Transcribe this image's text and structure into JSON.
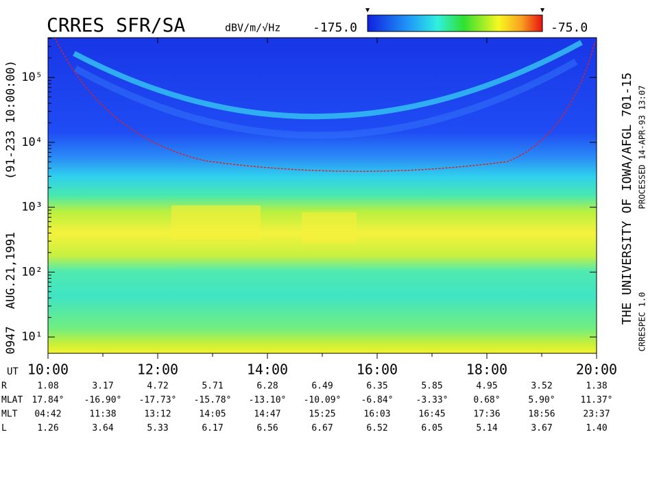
{
  "chart_data": {
    "type": "spectrogram",
    "title": "CRRES SFR/SA",
    "color_label": "dBV/m/√Hz",
    "clim": [
      -175,
      -75
    ],
    "cticks": [
      {
        "value": -175,
        "label": "-175.0"
      },
      {
        "value": -75,
        "label": "-75.0"
      }
    ],
    "ylog": true,
    "ylim": [
      5.6,
      410000
    ],
    "yticks": [
      {
        "value": 10,
        "label": "10¹"
      },
      {
        "value": 100,
        "label": "10²"
      },
      {
        "value": 1000,
        "label": "10³"
      },
      {
        "value": 10000,
        "label": "10⁴"
      },
      {
        "value": 100000,
        "label": "10⁵"
      }
    ],
    "xlim": [
      10,
      20
    ],
    "xticks": [
      {
        "value": 10,
        "label": "10:00"
      },
      {
        "value": 12,
        "label": "12:00"
      },
      {
        "value": 14,
        "label": "14:00"
      },
      {
        "value": 16,
        "label": "16:00"
      },
      {
        "value": 18,
        "label": "18:00"
      },
      {
        "value": 20,
        "label": "20:00"
      }
    ],
    "xminorticks": [
      11,
      13,
      15,
      17,
      19
    ],
    "x_axis_label": "UT",
    "left_labels": [
      "0947",
      "AUG.21,1991",
      "(91-233 10:00:00)"
    ],
    "right_label": "THE UNIVERSITY OF IOWA/AFGL 701-15",
    "right_small_labels": [
      "CRRESPEC 1.0",
      "PROCESSED 14-APR-93  13:07"
    ],
    "ephemeris": [
      {
        "label": "R",
        "values": [
          "1.08",
          "3.17",
          "4.72",
          "5.71",
          "6.28",
          "6.49",
          "6.35",
          "5.85",
          "4.95",
          "3.52",
          "1.38"
        ]
      },
      {
        "label": "MLAT",
        "values": [
          "17.84°",
          "-16.90°",
          "-17.73°",
          "-15.78°",
          "-13.10°",
          "-10.09°",
          "-6.84°",
          "-3.33°",
          "0.68°",
          "5.90°",
          "11.37°"
        ]
      },
      {
        "label": "MLT",
        "values": [
          "04:42",
          "11:38",
          "13:12",
          "14:05",
          "14:47",
          "15:25",
          "16:03",
          "16:45",
          "17:36",
          "18:56",
          "23:37"
        ]
      },
      {
        "label": "L",
        "values": [
          "1.26",
          "3.64",
          "5.33",
          "6.17",
          "6.56",
          "6.67",
          "6.52",
          "6.05",
          "5.14",
          "3.67",
          "1.40"
        ]
      }
    ]
  }
}
